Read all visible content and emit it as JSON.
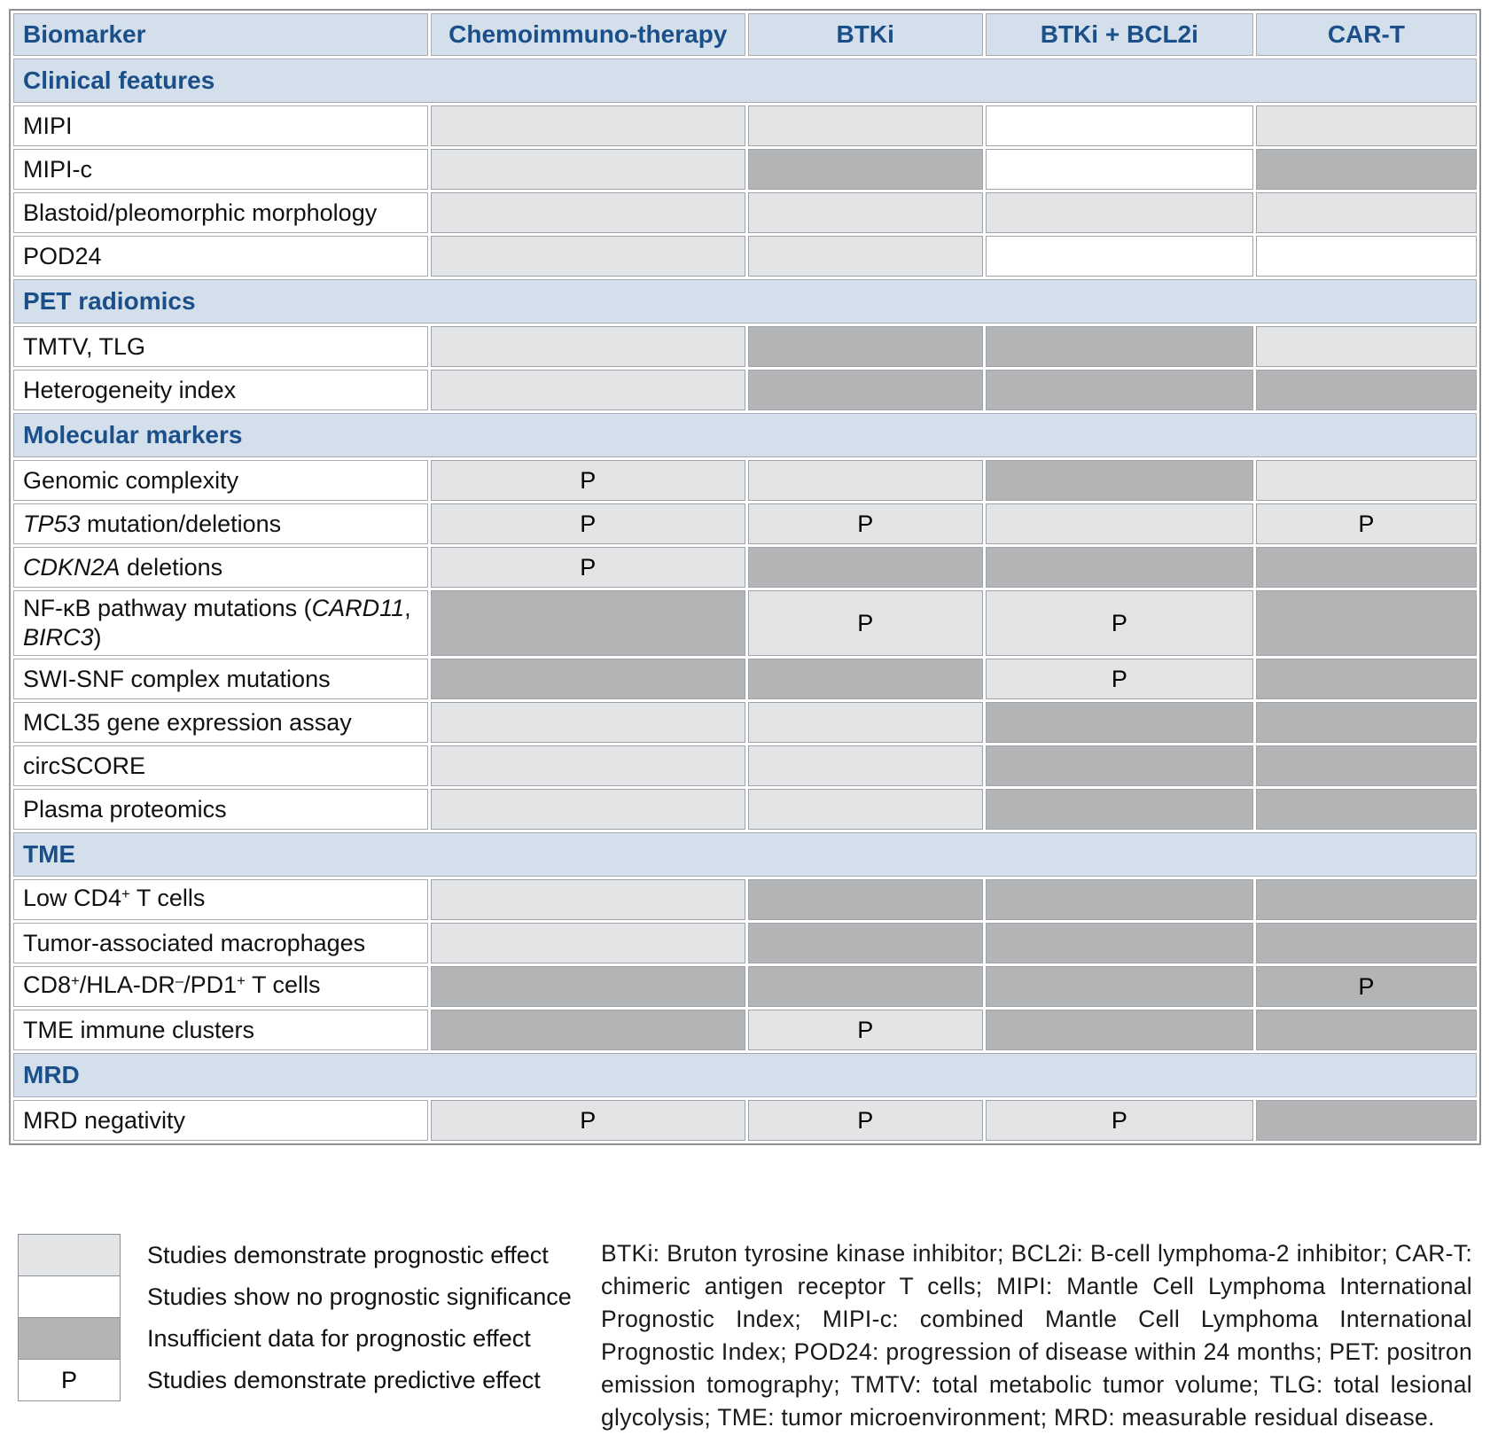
{
  "colors": {
    "section_header_bg": "#d3dfea",
    "section_header_text": "#1b4f8a",
    "prognostic_fill": "#e3e4e6",
    "no_significance_fill": "#ffffff",
    "insufficient_fill": "#b2b4b6"
  },
  "columns": [
    "Biomarker",
    "Chemoimmuno-therapy",
    "BTKi",
    "BTKi + BCL2i",
    "CAR-T"
  ],
  "sections": [
    {
      "title": "Clinical features",
      "rows": [
        {
          "label": [
            {
              "t": "MIPI"
            }
          ],
          "cells": [
            {
              "f": "p"
            },
            {
              "f": "p"
            },
            {
              "f": "n"
            },
            {
              "f": "p"
            }
          ]
        },
        {
          "label": [
            {
              "t": "MIPI-c"
            }
          ],
          "cells": [
            {
              "f": "p"
            },
            {
              "f": "i"
            },
            {
              "f": "n"
            },
            {
              "f": "i"
            }
          ]
        },
        {
          "label": [
            {
              "t": "Blastoid/pleomorphic morphology"
            }
          ],
          "cells": [
            {
              "f": "p"
            },
            {
              "f": "p"
            },
            {
              "f": "p"
            },
            {
              "f": "p"
            }
          ]
        },
        {
          "label": [
            {
              "t": "POD24"
            }
          ],
          "cells": [
            {
              "f": "p"
            },
            {
              "f": "p"
            },
            {
              "f": "n"
            },
            {
              "f": "n"
            }
          ]
        }
      ]
    },
    {
      "title": "PET radiomics",
      "rows": [
        {
          "label": [
            {
              "t": "TMTV, TLG"
            }
          ],
          "cells": [
            {
              "f": "p"
            },
            {
              "f": "i"
            },
            {
              "f": "i"
            },
            {
              "f": "p"
            }
          ]
        },
        {
          "label": [
            {
              "t": "Heterogeneity index"
            }
          ],
          "cells": [
            {
              "f": "p"
            },
            {
              "f": "i"
            },
            {
              "f": "i"
            },
            {
              "f": "i"
            }
          ]
        }
      ]
    },
    {
      "title": "Molecular markers",
      "rows": [
        {
          "label": [
            {
              "t": "Genomic complexity"
            }
          ],
          "cells": [
            {
              "f": "p",
              "m": "P"
            },
            {
              "f": "p"
            },
            {
              "f": "i"
            },
            {
              "f": "p"
            }
          ]
        },
        {
          "label": [
            {
              "t": "TP53",
              "i": true
            },
            {
              "t": " mutation/deletions"
            }
          ],
          "cells": [
            {
              "f": "p",
              "m": "P"
            },
            {
              "f": "p",
              "m": "P"
            },
            {
              "f": "p"
            },
            {
              "f": "p",
              "m": "P"
            }
          ]
        },
        {
          "label": [
            {
              "t": "CDKN2A",
              "i": true
            },
            {
              "t": " deletions"
            }
          ],
          "cells": [
            {
              "f": "p",
              "m": "P"
            },
            {
              "f": "i"
            },
            {
              "f": "i"
            },
            {
              "f": "i"
            }
          ]
        },
        {
          "label": [
            {
              "t": "NF-κB pathway mutations ("
            },
            {
              "t": "CARD11",
              "i": true
            },
            {
              "t": ", "
            },
            {
              "t": "BIRC3",
              "i": true
            },
            {
              "t": ")"
            }
          ],
          "cells": [
            {
              "f": "i"
            },
            {
              "f": "p",
              "m": "P"
            },
            {
              "f": "p",
              "m": "P"
            },
            {
              "f": "i"
            }
          ]
        },
        {
          "label": [
            {
              "t": "SWI-SNF complex mutations"
            }
          ],
          "cells": [
            {
              "f": "i"
            },
            {
              "f": "i"
            },
            {
              "f": "p",
              "m": "P"
            },
            {
              "f": "i"
            }
          ]
        },
        {
          "label": [
            {
              "t": "MCL35 gene expression assay"
            }
          ],
          "cells": [
            {
              "f": "p"
            },
            {
              "f": "p"
            },
            {
              "f": "i"
            },
            {
              "f": "i"
            }
          ]
        },
        {
          "label": [
            {
              "t": "circSCORE"
            }
          ],
          "cells": [
            {
              "f": "p"
            },
            {
              "f": "p"
            },
            {
              "f": "i"
            },
            {
              "f": "i"
            }
          ]
        },
        {
          "label": [
            {
              "t": "Plasma proteomics"
            }
          ],
          "cells": [
            {
              "f": "p"
            },
            {
              "f": "p"
            },
            {
              "f": "i"
            },
            {
              "f": "i"
            }
          ]
        }
      ]
    },
    {
      "title": "TME",
      "rows": [
        {
          "label": [
            {
              "t": "Low CD4"
            },
            {
              "t": "+",
              "sup": true
            },
            {
              "t": " T cells"
            }
          ],
          "cells": [
            {
              "f": "p"
            },
            {
              "f": "i"
            },
            {
              "f": "i"
            },
            {
              "f": "i"
            }
          ]
        },
        {
          "label": [
            {
              "t": "Tumor-associated macrophages"
            }
          ],
          "cells": [
            {
              "f": "p"
            },
            {
              "f": "i"
            },
            {
              "f": "i"
            },
            {
              "f": "i"
            }
          ]
        },
        {
          "label": [
            {
              "t": "CD8"
            },
            {
              "t": "+",
              "sup": true
            },
            {
              "t": "/HLA-DR"
            },
            {
              "t": "–",
              "sup": true
            },
            {
              "t": "/PD1"
            },
            {
              "t": "+",
              "sup": true
            },
            {
              "t": " T cells"
            }
          ],
          "cells": [
            {
              "f": "i"
            },
            {
              "f": "i"
            },
            {
              "f": "i"
            },
            {
              "f": "i",
              "m": "P"
            }
          ]
        },
        {
          "label": [
            {
              "t": "TME immune clusters"
            }
          ],
          "cells": [
            {
              "f": "i"
            },
            {
              "f": "p",
              "m": "P"
            },
            {
              "f": "i"
            },
            {
              "f": "i"
            }
          ]
        }
      ]
    },
    {
      "title": "MRD",
      "rows": [
        {
          "label": [
            {
              "t": "MRD negativity"
            }
          ],
          "cells": [
            {
              "f": "p",
              "m": "P"
            },
            {
              "f": "p",
              "m": "P"
            },
            {
              "f": "p",
              "m": "P"
            },
            {
              "f": "i"
            }
          ]
        }
      ]
    }
  ],
  "legend": [
    {
      "fill": "p",
      "mark": "",
      "label": "Studies demonstrate prognostic effect"
    },
    {
      "fill": "n",
      "mark": "",
      "label": "Studies show no prognostic significance"
    },
    {
      "fill": "i",
      "mark": "",
      "label": "Insufficient data for prognostic effect"
    },
    {
      "fill": "n",
      "mark": "P",
      "label": "Studies demonstrate predictive effect"
    }
  ],
  "footnote": "BTKi: Bruton tyrosine kinase inhibitor; BCL2i: B-cell lymphoma-2 inhibitor; CAR-T: chimeric antigen receptor T cells; MIPI: Mantle Cell Lymphoma International Prognostic Index; MIPI-c: combined Mantle Cell Lymphoma International Prognostic Index; POD24: progression of disease within 24 months; PET: positron emission tomography; TMTV: total metabolic tumor volume; TLG: total lesional glycolysis; TME: tumor microenvironment; MRD: measurable residual disease."
}
